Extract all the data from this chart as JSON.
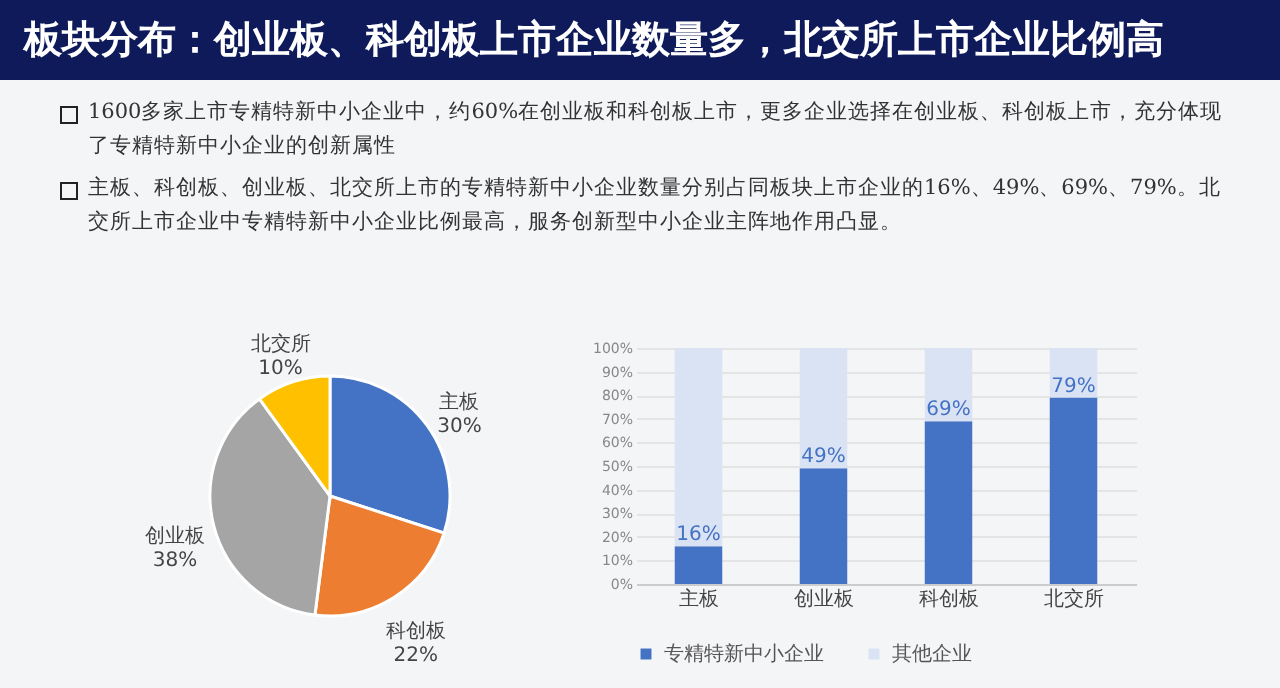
{
  "chart_data": [
    {
      "type": "other",
      "title": "板块分布：创业板、科创板上市企业数量多，北交所上市企业比例高",
      "annotations": [
        "1600多家上市专精特新中小企业中，约60%在创业板和科创板上市，更多企业选择在创业板、科创板上市，充分体现了专精特新中小企业的创新属性",
        "主板、科创板、创业板、北交所上市的专精特新中小企业数量分别占同板块上市企业的16%、49%、69%、79%。北交所上市企业中专精特新中小企业比例最高，服务创新型中小企业主阵地作用凸显。"
      ]
    },
    {
      "type": "pie",
      "categories": [
        "主板",
        "科创板",
        "创业板",
        "北交所"
      ],
      "values": [
        30,
        22,
        38,
        10
      ],
      "colors": [
        "#4472c4",
        "#ed7d31",
        "#a5a5a5",
        "#ffc000"
      ],
      "value_labels": [
        "30%",
        "22%",
        "38%",
        "10%"
      ],
      "legend": false
    },
    {
      "type": "bar",
      "stacked": true,
      "categories": [
        "主板",
        "创业板",
        "科创板",
        "北交所"
      ],
      "series": [
        {
          "name": "专精特新中小企业",
          "color": "#4472c4",
          "values": [
            16,
            49,
            69,
            79
          ],
          "value_labels": [
            "16%",
            "49%",
            "69%",
            "79%"
          ]
        },
        {
          "name": "其他企业",
          "color": "#dae3f3",
          "values": [
            84,
            51,
            31,
            21
          ]
        }
      ],
      "ylim": [
        0,
        100
      ],
      "yticks": [
        {
          "value": 0,
          "label": "0%"
        },
        {
          "value": 10,
          "label": "10%"
        },
        {
          "value": 20,
          "label": "20%"
        },
        {
          "value": 30,
          "label": "30%"
        },
        {
          "value": 40,
          "label": "40%"
        },
        {
          "value": 50,
          "label": "50%"
        },
        {
          "value": 60,
          "label": "60%"
        },
        {
          "value": 70,
          "label": "70%"
        },
        {
          "value": 80,
          "label": "80%"
        },
        {
          "value": 90,
          "label": "90%"
        },
        {
          "value": 100,
          "label": "100%"
        }
      ],
      "grid": "y",
      "legend": "bottom"
    }
  ]
}
